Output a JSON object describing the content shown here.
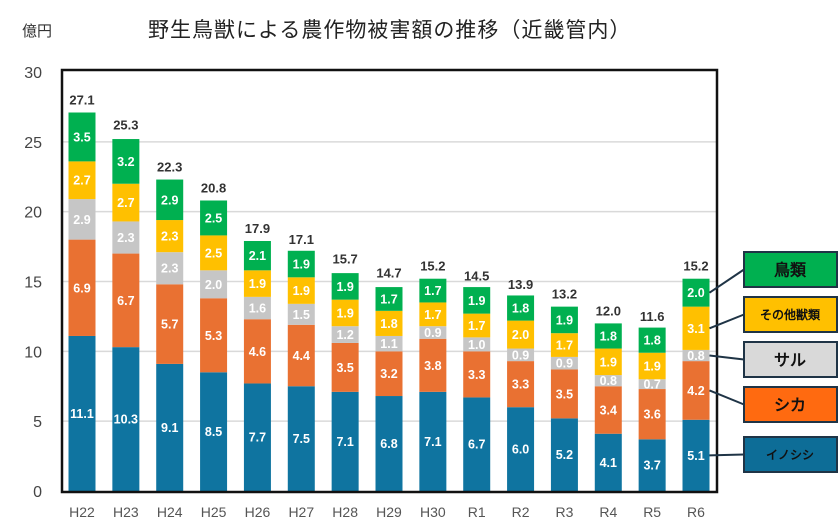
{
  "chart_data": {
    "type": "bar",
    "stacked": true,
    "title": "野生鳥獣による農作物被害額の推移（近畿管内）",
    "ylabel": "億円",
    "ylim": [
      0,
      30
    ],
    "yticks": [
      0,
      5,
      10,
      15,
      20,
      25,
      30
    ],
    "grid": true,
    "legend_placement": "right",
    "categories": [
      "H22",
      "H23",
      "H24",
      "H25",
      "H26",
      "H27",
      "H28",
      "H29",
      "H30",
      "R1",
      "R2",
      "R3",
      "R4",
      "R5",
      "R6"
    ],
    "totals": [
      27.1,
      25.3,
      22.3,
      20.8,
      17.9,
      17.1,
      15.7,
      14.7,
      15.2,
      14.5,
      13.9,
      13.2,
      12.0,
      11.6,
      15.2
    ],
    "series": [
      {
        "name": "イノシシ",
        "color": "#0f74a0",
        "legend_color": "#0d6d97",
        "values": [
          11.1,
          10.3,
          9.1,
          8.5,
          7.7,
          7.5,
          7.1,
          6.8,
          7.1,
          6.7,
          6.0,
          5.2,
          4.1,
          3.7,
          5.1
        ]
      },
      {
        "name": "シカ",
        "color": "#e97132",
        "legend_color": "#ff6a10",
        "values": [
          6.9,
          6.7,
          5.7,
          5.3,
          4.6,
          4.4,
          3.5,
          3.2,
          3.8,
          3.3,
          3.3,
          3.5,
          3.4,
          3.6,
          4.2
        ]
      },
      {
        "name": "サル",
        "color": "#c6c6c6",
        "legend_color": "#d9d9d9",
        "values": [
          2.9,
          2.3,
          2.3,
          2.0,
          1.6,
          1.5,
          1.2,
          1.1,
          0.9,
          1.0,
          0.9,
          0.9,
          0.8,
          0.7,
          0.8
        ]
      },
      {
        "name": "その他獣類",
        "color": "#ffc000",
        "legend_color": "#ffc000",
        "values": [
          2.7,
          2.7,
          2.3,
          2.5,
          1.9,
          1.9,
          1.9,
          1.8,
          1.7,
          1.7,
          2.0,
          1.7,
          1.9,
          1.9,
          3.1
        ]
      },
      {
        "name": "鳥類",
        "color": "#00b050",
        "legend_color": "#00b050",
        "values": [
          3.5,
          3.2,
          2.9,
          2.5,
          2.1,
          1.9,
          1.9,
          1.7,
          1.7,
          1.9,
          1.8,
          1.9,
          1.8,
          1.8,
          2.0
        ]
      }
    ]
  }
}
